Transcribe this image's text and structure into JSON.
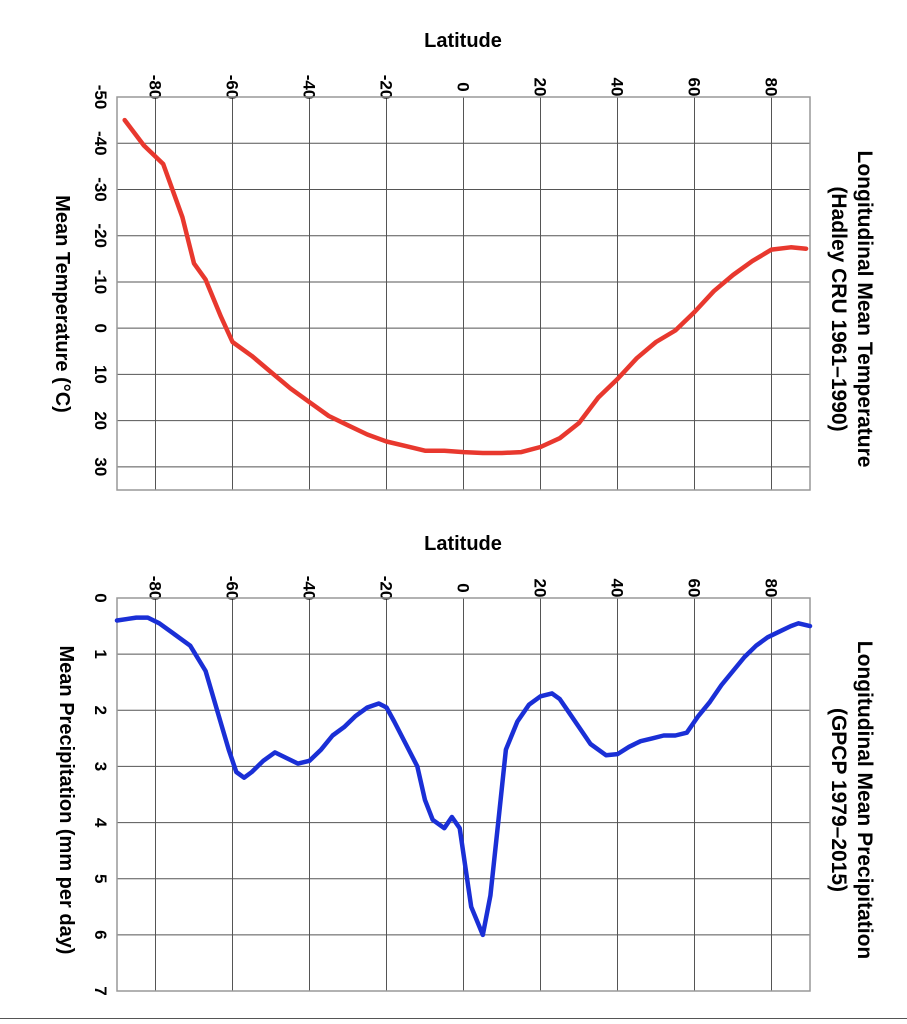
{
  "chart_data": [
    {
      "type": "line",
      "title": "Longitudinal Mean Temperature",
      "subtitle": "(Hadley CRU 1961–1990)",
      "xlabel": "Latitude",
      "ylabel": "Mean Temperature (°C)",
      "xlim": [
        -90,
        90
      ],
      "ylim": [
        -50,
        35
      ],
      "x_ticks": [
        -80,
        -60,
        -40,
        -20,
        0,
        20,
        40,
        60,
        80
      ],
      "y_ticks": [
        -50,
        -40,
        -30,
        -20,
        -10,
        0,
        10,
        20,
        30
      ],
      "orientation": "rotated 90° clockwise",
      "grid": true,
      "color": "#e8382e",
      "x": [
        -88,
        -83,
        -78,
        -73,
        -70,
        -67,
        -63,
        -60,
        -55,
        -50,
        -45,
        -40,
        -35,
        -30,
        -25,
        -20,
        -15,
        -10,
        -5,
        0,
        5,
        10,
        15,
        20,
        25,
        30,
        35,
        40,
        45,
        50,
        55,
        60,
        65,
        70,
        75,
        80,
        85,
        89
      ],
      "series": [
        {
          "values": [
            -45,
            -39.5,
            -35.5,
            -24,
            -14,
            -10.5,
            -2.5,
            3,
            6,
            9.5,
            13,
            16,
            19,
            21,
            23,
            24.5,
            25.5,
            26.5,
            26.5,
            26.8,
            27,
            27,
            26.8,
            25.7,
            23.8,
            20.5,
            15,
            11,
            6.5,
            3,
            0.5,
            -3.5,
            -8,
            -11.5,
            -14.5,
            -17,
            -17.5,
            -17.2
          ]
        }
      ]
    },
    {
      "type": "line",
      "title": "Longitudinal Mean Precipitation",
      "subtitle": "(GPCP 1979–2015)",
      "xlabel": "Latitude",
      "ylabel": "Mean Precipitation (mm per day)",
      "xlim": [
        -90,
        90
      ],
      "ylim": [
        0,
        7
      ],
      "x_ticks": [
        -80,
        -60,
        -40,
        -20,
        0,
        20,
        40,
        60,
        80
      ],
      "y_ticks": [
        0,
        1,
        2,
        3,
        4,
        5,
        6,
        7
      ],
      "orientation": "rotated 90° clockwise",
      "grid": true,
      "color": "#1a2fd6",
      "x": [
        -90,
        -85,
        -82,
        -79,
        -75,
        -71,
        -67,
        -64,
        -61,
        -59,
        -57,
        -55,
        -52,
        -49,
        -46,
        -43,
        -40,
        -37,
        -34,
        -31,
        -28,
        -25,
        -22,
        -20,
        -18,
        -15,
        -12,
        -10,
        -8,
        -5,
        -3,
        -1,
        2,
        5,
        7,
        9,
        11,
        14,
        17,
        20,
        23,
        25,
        27,
        30,
        33,
        37,
        40,
        43,
        46,
        49,
        52,
        55,
        58,
        61,
        64,
        67,
        70,
        73,
        76,
        79,
        82,
        85,
        87,
        90
      ],
      "series": [
        {
          "values": [
            0.4,
            0.35,
            0.35,
            0.45,
            0.65,
            0.85,
            1.3,
            2.0,
            2.7,
            3.1,
            3.2,
            3.1,
            2.9,
            2.75,
            2.85,
            2.95,
            2.9,
            2.7,
            2.45,
            2.3,
            2.1,
            1.95,
            1.88,
            1.95,
            2.2,
            2.6,
            3.0,
            3.6,
            3.95,
            4.1,
            3.9,
            4.1,
            5.5,
            6.0,
            5.3,
            4.0,
            2.7,
            2.2,
            1.9,
            1.75,
            1.7,
            1.8,
            2.0,
            2.3,
            2.6,
            2.8,
            2.78,
            2.65,
            2.55,
            2.5,
            2.45,
            2.45,
            2.4,
            2.1,
            1.85,
            1.55,
            1.3,
            1.05,
            0.85,
            0.7,
            0.6,
            0.5,
            0.45,
            0.5
          ]
        }
      ]
    }
  ]
}
